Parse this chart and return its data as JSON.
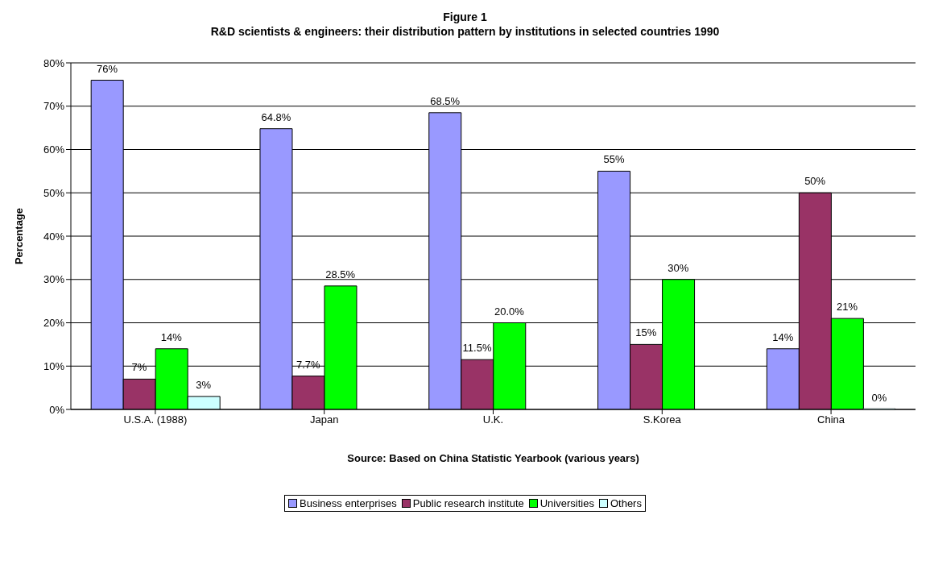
{
  "chart_data": {
    "type": "bar",
    "title": "Figure 1",
    "subtitle": "R&D scientists & engineers: their distribution pattern by institutions in selected countries 1990",
    "ylabel": "Percentage",
    "annotations": [
      "Source: Based on China Statistic Yearbook (various years)"
    ],
    "categories": [
      "U.S.A. (1988)",
      "Japan",
      "U.K.",
      "S.Korea",
      "China"
    ],
    "series": [
      {
        "name": "Business enterprises",
        "color": "#9999ff",
        "values": [
          76,
          64.8,
          68.5,
          55,
          14
        ],
        "value_labels": [
          "76%",
          "64.8%",
          "68.5%",
          "55%",
          "14%"
        ]
      },
      {
        "name": "Public research institute",
        "color": "#993366",
        "values": [
          7,
          7.7,
          11.5,
          15,
          50
        ],
        "value_labels": [
          "7%",
          "7.7%",
          "11.5%",
          "15%",
          "50%"
        ]
      },
      {
        "name": "Universities",
        "color": "#00ff00",
        "values": [
          14,
          28.5,
          20.0,
          30,
          21
        ],
        "value_labels": [
          "14%",
          "28.5%",
          "20.0%",
          "30%",
          "21%"
        ]
      },
      {
        "name": "Others",
        "color": "#ccffff",
        "values": [
          3,
          null,
          null,
          null,
          0
        ],
        "value_labels": [
          "3%",
          null,
          null,
          null,
          "0%"
        ]
      }
    ],
    "ylim": [
      0,
      80
    ],
    "yticks": [
      {
        "value": 0,
        "label": "0%"
      },
      {
        "value": 10,
        "label": "10%"
      },
      {
        "value": 20,
        "label": "20%"
      },
      {
        "value": 30,
        "label": "30%"
      },
      {
        "value": 40,
        "label": "40%"
      },
      {
        "value": 50,
        "label": "50%"
      },
      {
        "value": 60,
        "label": "60%"
      },
      {
        "value": 70,
        "label": "70%"
      },
      {
        "value": 80,
        "label": "80%"
      }
    ],
    "grid": "y",
    "legend": "bottom"
  }
}
